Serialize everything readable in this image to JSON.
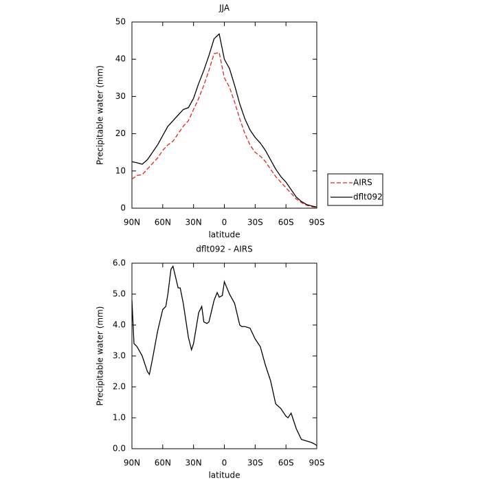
{
  "chart_data": [
    {
      "type": "line",
      "title": "JJA",
      "xlabel": "latitude",
      "ylabel": "Precipitable water (mm)",
      "x": [
        90,
        85,
        80,
        75,
        70,
        65,
        60,
        55,
        50,
        45,
        40,
        35,
        30,
        25,
        20,
        15,
        10,
        5,
        0,
        -5,
        -10,
        -15,
        -20,
        -25,
        -30,
        -35,
        -40,
        -45,
        -50,
        -55,
        -60,
        -65,
        -70,
        -75,
        -80,
        -85,
        -90
      ],
      "series": [
        {
          "name": "AIRS",
          "color": "#e8211c",
          "linestyle": "dashed",
          "values": [
            7.8,
            8.8,
            9,
            10.5,
            12,
            13.5,
            15.5,
            17,
            18,
            20,
            22,
            23.5,
            26.5,
            29.5,
            33,
            37,
            41.5,
            41.8,
            35,
            32.5,
            28.5,
            24,
            20,
            17,
            15,
            14,
            12.5,
            10.5,
            8.5,
            7,
            5.5,
            4,
            2.5,
            1.5,
            0.8,
            0.4,
            0.2
          ]
        },
        {
          "name": "dflt092",
          "color": "#000000",
          "linestyle": "solid",
          "values": [
            12.5,
            12.2,
            11.8,
            13,
            15,
            17,
            19.5,
            22,
            23.5,
            25,
            26.5,
            27,
            29.5,
            33.5,
            37,
            41,
            45.5,
            46.8,
            40,
            37.5,
            33,
            28,
            24,
            21,
            19,
            17.5,
            15.5,
            13,
            10.5,
            8.5,
            7,
            5,
            3,
            1.8,
            1,
            0.6,
            0.3
          ]
        }
      ],
      "xlim": [
        90,
        -90
      ],
      "xticks": [
        {
          "value": 90,
          "label": "90N"
        },
        {
          "value": 60,
          "label": "60N"
        },
        {
          "value": 30,
          "label": "30N"
        },
        0,
        {
          "value": -30,
          "label": "30S"
        },
        {
          "value": -60,
          "label": "60S"
        },
        {
          "value": -90,
          "label": "90S"
        }
      ],
      "ylim": [
        0,
        50
      ],
      "yticks": [
        0,
        10,
        20,
        30,
        40,
        50
      ],
      "legend": "right"
    },
    {
      "type": "line",
      "title": "dflt092 - AIRS",
      "xlabel": "latitude",
      "ylabel": "Precipitable water (mm)",
      "x": [
        90,
        88,
        85,
        80,
        75,
        73,
        70,
        65,
        60,
        57,
        55,
        52,
        50,
        45,
        43,
        40,
        35,
        32,
        30,
        25,
        22,
        20,
        17,
        15,
        10,
        7,
        5,
        2,
        0,
        -5,
        -10,
        -15,
        -17,
        -20,
        -25,
        -30,
        -35,
        -40,
        -45,
        -50,
        -55,
        -60,
        -62,
        -65,
        -70,
        -75,
        -80,
        -85,
        -88,
        -90
      ],
      "values": [
        4.8,
        3.4,
        3.3,
        3.0,
        2.5,
        2.4,
        2.9,
        3.8,
        4.5,
        4.6,
        5.0,
        5.8,
        5.9,
        5.2,
        5.2,
        4.7,
        3.6,
        3.2,
        3.4,
        4.4,
        4.6,
        4.1,
        4.05,
        4.1,
        4.8,
        5.05,
        4.9,
        4.95,
        5.4,
        5.0,
        4.7,
        4.0,
        3.95,
        3.95,
        3.9,
        3.55,
        3.3,
        2.7,
        2.2,
        1.45,
        1.3,
        1.05,
        1.0,
        1.15,
        0.65,
        0.3,
        0.25,
        0.2,
        0.15,
        0.1
      ],
      "color": "#000000",
      "xlim": [
        90,
        -90
      ],
      "xticks": [
        {
          "value": 90,
          "label": "90N"
        },
        {
          "value": 60,
          "label": "60N"
        },
        {
          "value": 30,
          "label": "30N"
        },
        0,
        {
          "value": -30,
          "label": "30S"
        },
        {
          "value": -60,
          "label": "60S"
        },
        {
          "value": -90,
          "label": "90S"
        }
      ],
      "ylim": [
        0,
        6
      ],
      "yticks": [
        {
          "value": 0,
          "label": "0.0"
        },
        {
          "value": 1,
          "label": "1.0"
        },
        {
          "value": 2,
          "label": "2.0"
        },
        {
          "value": 3,
          "label": "3.0"
        },
        {
          "value": 4,
          "label": "4.0"
        },
        {
          "value": 5,
          "label": "5.0"
        },
        {
          "value": 6,
          "label": "6.0"
        }
      ]
    }
  ]
}
